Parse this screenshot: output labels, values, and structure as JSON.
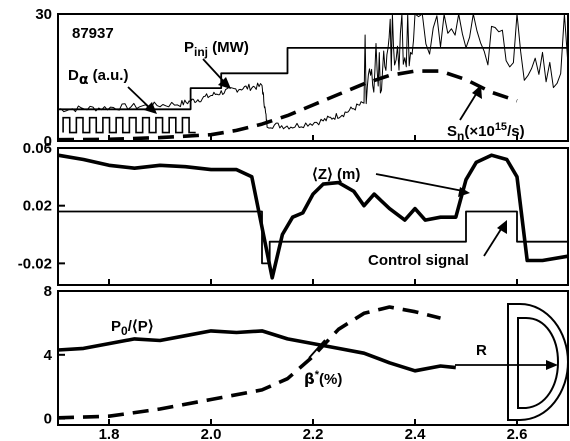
{
  "chart_data": {
    "type": "line",
    "shot_label": "87937",
    "x_tick_labels": [
      "1.8",
      "2.0",
      "2.2",
      "2.4",
      "2.6"
    ],
    "x_ticks": [
      1.8,
      2.0,
      2.2,
      2.4,
      2.6
    ],
    "xlim": [
      1.7,
      2.7
    ],
    "panels": [
      {
        "id": "top",
        "ylim": [
          0,
          30
        ],
        "y_ticks": [
          0,
          30
        ],
        "y_tick_labels": [
          "0",
          "30"
        ],
        "annotations": {
          "dalpha": "Dα (a.u.)",
          "pinj": "Pinj (MW)",
          "sn": "Sn(×1015/s)"
        },
        "series": [
          {
            "name": "Pinj (MW)",
            "style": "thin-solid",
            "x": [
              1.7,
              1.96,
              1.96,
              2.02,
              2.02,
              2.15,
              2.15,
              2.7
            ],
            "y": [
              7.5,
              7.5,
              12.5,
              12.5,
              16,
              16,
              22,
              22
            ]
          },
          {
            "name": "Sn(×1015/s)",
            "style": "thick-dashed",
            "x": [
              1.7,
              1.8,
              1.9,
              2.0,
              2.05,
              2.1,
              2.15,
              2.2,
              2.25,
              2.3,
              2.35,
              2.4,
              2.45,
              2.5,
              2.55,
              2.6
            ],
            "y": [
              0.3,
              0.4,
              0.8,
              1.5,
              2.5,
              4,
              6,
              8.5,
              11,
              13.5,
              15.5,
              16.5,
              16.5,
              14.5,
              11.5,
              9.5
            ]
          },
          {
            "name": "Dα (a.u.)",
            "style": "noisy-thin",
            "x": [
              1.7,
              1.78,
              1.86,
              1.94,
              1.98,
              2.02,
              2.06,
              2.1,
              2.11,
              2.16,
              2.22,
              2.26,
              2.3,
              2.33,
              2.36,
              2.4,
              2.5,
              2.6,
              2.7
            ],
            "y": [
              7.5,
              7.8,
              8.2,
              8.8,
              10,
              11.5,
              12.5,
              13,
              3.8,
              3.5,
              4.8,
              6.5,
              9,
              15,
              22,
              24,
              24,
              20,
              18
            ]
          },
          {
            "name": "Control waveform",
            "style": "square-thin",
            "period_x": 0.026,
            "high_y": 5.5,
            "low_y": 2.0,
            "x_range": [
              1.71,
              1.97
            ]
          }
        ]
      },
      {
        "id": "middle",
        "ylim": [
          -0.035,
          0.06
        ],
        "y_ticks": [
          -0.02,
          0.02,
          0.06
        ],
        "y_tick_labels": [
          "-0.02",
          "0.02",
          "0.06"
        ],
        "annotations": {
          "z": "⟨Z⟩ (m)",
          "control": "Control signal"
        },
        "series": [
          {
            "name": "⟨Z⟩ (m)",
            "style": "thick-solid",
            "x": [
              1.7,
              1.75,
              1.8,
              1.85,
              1.9,
              1.95,
              2.0,
              2.05,
              2.08,
              2.1,
              2.12,
              2.14,
              2.16,
              2.18,
              2.2,
              2.22,
              2.25,
              2.28,
              2.3,
              2.32,
              2.35,
              2.38,
              2.4,
              2.42,
              2.45,
              2.48,
              2.5,
              2.52,
              2.55,
              2.58,
              2.6,
              2.62,
              2.65,
              2.7
            ],
            "y": [
              0.055,
              0.052,
              0.048,
              0.046,
              0.048,
              0.047,
              0.045,
              0.045,
              0.04,
              0.005,
              -0.03,
              0.0,
              0.012,
              0.015,
              0.028,
              0.035,
              0.036,
              0.03,
              0.02,
              0.028,
              0.018,
              0.01,
              0.018,
              0.01,
              0.012,
              0.012,
              0.038,
              0.05,
              0.055,
              0.052,
              0.04,
              -0.018,
              -0.018,
              -0.015
            ]
          },
          {
            "name": "Control signal",
            "style": "thin-solid",
            "x": [
              1.7,
              2.1,
              2.1,
              2.115,
              2.115,
              2.15,
              2.15,
              2.5,
              2.5,
              2.6,
              2.6,
              2.7
            ],
            "y": [
              0.016,
              0.016,
              -0.02,
              -0.02,
              -0.005,
              -0.005,
              -0.005,
              -0.005,
              0.016,
              0.016,
              -0.005,
              -0.005
            ]
          }
        ]
      },
      {
        "id": "bottom",
        "ylim": [
          -0.4,
          8
        ],
        "y_ticks": [
          0,
          4,
          8
        ],
        "y_tick_labels": [
          "0",
          "4",
          "8"
        ],
        "annotations": {
          "p": "P0/⟨P⟩",
          "beta": "β*(%)",
          "r": "R"
        },
        "series": [
          {
            "name": "P0/⟨P⟩",
            "style": "thick-solid",
            "x": [
              1.7,
              1.75,
              1.8,
              1.85,
              1.9,
              1.95,
              2.0,
              2.05,
              2.1,
              2.15,
              2.2,
              2.25,
              2.3,
              2.35,
              2.4,
              2.45,
              2.48
            ],
            "y": [
              4.3,
              4.4,
              4.7,
              5.0,
              4.9,
              5.2,
              5.5,
              5.4,
              5.5,
              5.0,
              4.7,
              4.4,
              4.1,
              3.5,
              3.0,
              3.3,
              3.2
            ]
          },
          {
            "name": "β*(%)",
            "style": "thick-dashed",
            "x": [
              1.7,
              1.8,
              1.9,
              2.0,
              2.1,
              2.15,
              2.2,
              2.25,
              2.3,
              2.35,
              2.4,
              2.45
            ],
            "y": [
              0.05,
              0.15,
              0.6,
              1.2,
              1.8,
              2.5,
              3.9,
              5.6,
              6.6,
              7.0,
              6.7,
              6.3
            ]
          }
        ]
      }
    ]
  }
}
